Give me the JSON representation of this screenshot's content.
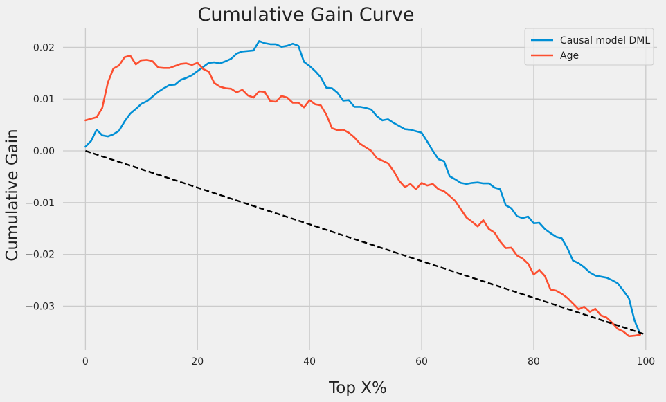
{
  "chart_data": {
    "type": "line",
    "title": "Cumulative Gain Curve",
    "xlabel": "Top X%",
    "ylabel": "Cumulative Gain",
    "xlim": [
      -4,
      102
    ],
    "ylim": [
      -0.0385,
      0.0238
    ],
    "xticks": [
      0,
      20,
      40,
      60,
      80,
      100
    ],
    "yticks": [
      -0.03,
      -0.02,
      -0.01,
      0.0,
      0.01,
      0.02
    ],
    "ytick_labels": [
      "−0.03",
      "−0.02",
      "−0.01",
      "0.00",
      "0.01",
      "0.02"
    ],
    "grid": true,
    "legend_position": "top-right",
    "series": [
      {
        "name": "Causal model DML",
        "color": "#008fd5",
        "x": [
          0,
          1,
          2,
          3,
          4,
          5,
          6,
          7,
          8,
          9,
          10,
          11,
          12,
          13,
          14,
          15,
          16,
          17,
          18,
          19,
          20,
          21,
          22,
          23,
          24,
          25,
          26,
          27,
          28,
          29,
          30,
          31,
          32,
          33,
          34,
          35,
          36,
          37,
          38,
          39,
          40,
          41,
          42,
          43,
          44,
          45,
          46,
          47,
          48,
          49,
          50,
          51,
          52,
          53,
          54,
          55,
          56,
          57,
          58,
          59,
          60,
          61,
          62,
          63,
          64,
          65,
          66,
          67,
          68,
          69,
          70,
          71,
          72,
          73,
          74,
          75,
          76,
          77,
          78,
          79,
          80,
          81,
          82,
          83,
          84,
          85,
          86,
          87,
          88,
          89,
          90,
          91,
          92,
          93,
          94,
          95,
          96,
          97,
          98,
          99
        ],
        "y": [
          0.0008,
          0.0019,
          0.0041,
          0.003,
          0.0028,
          0.0032,
          0.0039,
          0.0057,
          0.0072,
          0.0081,
          0.0091,
          0.0096,
          0.0105,
          0.0114,
          0.0121,
          0.0127,
          0.0128,
          0.0137,
          0.0141,
          0.0146,
          0.0154,
          0.0162,
          0.017,
          0.0171,
          0.0169,
          0.0173,
          0.0178,
          0.0188,
          0.0192,
          0.0193,
          0.0194,
          0.0212,
          0.0208,
          0.0206,
          0.0206,
          0.0201,
          0.0203,
          0.0207,
          0.0203,
          0.0172,
          0.0164,
          0.0154,
          0.0142,
          0.0122,
          0.0121,
          0.0112,
          0.0097,
          0.0098,
          0.0085,
          0.0085,
          0.0083,
          0.008,
          0.0067,
          0.0059,
          0.0061,
          0.0054,
          0.0048,
          0.0042,
          0.0041,
          0.0038,
          0.0035,
          0.0018,
          0.0,
          -0.0016,
          -0.002,
          -0.0049,
          -0.0055,
          -0.0062,
          -0.0064,
          -0.0062,
          -0.0061,
          -0.0063,
          -0.0063,
          -0.0071,
          -0.0074,
          -0.0105,
          -0.0111,
          -0.0126,
          -0.013,
          -0.0127,
          -0.014,
          -0.0139,
          -0.0151,
          -0.0159,
          -0.0166,
          -0.0169,
          -0.0188,
          -0.0212,
          -0.0217,
          -0.0225,
          -0.0235,
          -0.0241,
          -0.0243,
          -0.0245,
          -0.025,
          -0.0256,
          -0.027,
          -0.0285,
          -0.0328,
          -0.0354
        ]
      },
      {
        "name": "Age",
        "color": "#fc4f30",
        "x": [
          0,
          1,
          2,
          3,
          4,
          5,
          6,
          7,
          8,
          9,
          10,
          11,
          12,
          13,
          14,
          15,
          16,
          17,
          18,
          19,
          20,
          21,
          22,
          23,
          24,
          25,
          26,
          27,
          28,
          29,
          30,
          31,
          32,
          33,
          34,
          35,
          36,
          37,
          38,
          39,
          40,
          41,
          42,
          43,
          44,
          45,
          46,
          47,
          48,
          49,
          50,
          51,
          52,
          53,
          54,
          55,
          56,
          57,
          58,
          59,
          60,
          61,
          62,
          63,
          64,
          65,
          66,
          67,
          68,
          69,
          70,
          71,
          72,
          73,
          74,
          75,
          76,
          77,
          78,
          79,
          80,
          81,
          82,
          83,
          84,
          85,
          86,
          87,
          88,
          89,
          90,
          91,
          92,
          93,
          94,
          95,
          96,
          97,
          98,
          99
        ],
        "y": [
          0.0059,
          0.0062,
          0.0065,
          0.0083,
          0.0132,
          0.0159,
          0.0165,
          0.0181,
          0.0184,
          0.0167,
          0.0175,
          0.0176,
          0.0173,
          0.0161,
          0.016,
          0.016,
          0.0164,
          0.0168,
          0.0169,
          0.0166,
          0.017,
          0.0158,
          0.0153,
          0.0131,
          0.0124,
          0.0121,
          0.012,
          0.0113,
          0.0118,
          0.0107,
          0.0103,
          0.0115,
          0.0114,
          0.0096,
          0.0095,
          0.0106,
          0.0103,
          0.0093,
          0.0093,
          0.0084,
          0.0098,
          0.009,
          0.0088,
          0.007,
          0.0044,
          0.004,
          0.0041,
          0.0035,
          0.0026,
          0.0014,
          0.0007,
          0.0,
          -0.0014,
          -0.0019,
          -0.0024,
          -0.0039,
          -0.0058,
          -0.007,
          -0.0064,
          -0.0074,
          -0.0062,
          -0.0067,
          -0.0064,
          -0.0074,
          -0.0078,
          -0.0087,
          -0.0097,
          -0.0113,
          -0.0129,
          -0.0137,
          -0.0146,
          -0.0134,
          -0.0151,
          -0.0158,
          -0.0175,
          -0.0188,
          -0.0187,
          -0.0202,
          -0.0208,
          -0.0218,
          -0.0239,
          -0.023,
          -0.0242,
          -0.0268,
          -0.027,
          -0.0276,
          -0.0284,
          -0.0295,
          -0.0306,
          -0.0301,
          -0.0311,
          -0.0305,
          -0.0318,
          -0.0322,
          -0.0332,
          -0.0344,
          -0.0349,
          -0.0358,
          -0.0357,
          -0.0355
        ]
      },
      {
        "color": "#000000",
        "dashed": true,
        "x": [
          0,
          100
        ],
        "y": [
          0.0,
          -0.0355
        ]
      }
    ]
  }
}
